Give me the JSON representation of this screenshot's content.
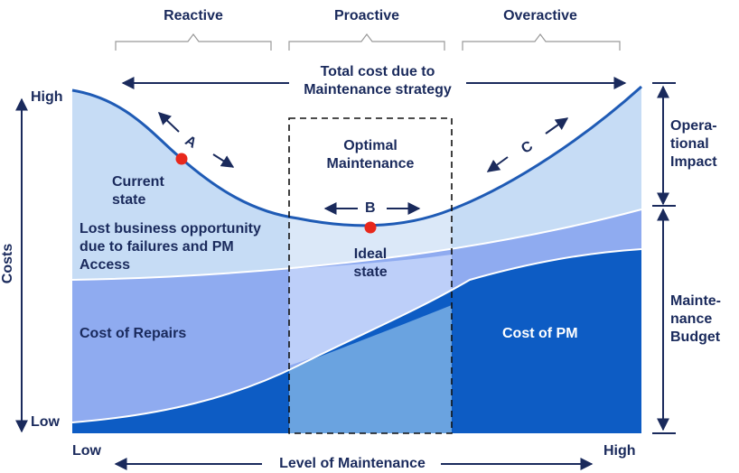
{
  "phases": {
    "reactive": "Reactive",
    "proactive": "Proactive",
    "overactive": "Overactive"
  },
  "total_cost": "Total cost due to\nMaintenance strategy",
  "y_axis": {
    "label": "Costs",
    "high": "High",
    "low": "Low"
  },
  "x_axis": {
    "label": "Level of Maintenance",
    "low": "Low",
    "high": "High"
  },
  "optimal": "Optimal\nMaintenance",
  "points": {
    "a": "A",
    "b": "B",
    "c": "C",
    "current_state": "Current\nstate",
    "ideal_state": "Ideal\nstate"
  },
  "regions": {
    "lost_business": "Lost business opportunity\ndue to failures and PM\nAccess",
    "cost_of_repairs": "Cost of Repairs",
    "cost_of_pm": "Cost of PM"
  },
  "right_brackets": {
    "operational_impact": "Opera-\ntional\nImpact",
    "maintenance_budget": "Mainte-\nnance\nBudget"
  },
  "colors": {
    "navy_text": "#1a2a5c",
    "curve": "#1f5bb5",
    "marker": "#e8281c",
    "pm_dark": "#0d5cc4",
    "repairs": "#8fabf0",
    "lost_business": "#c6dcf5"
  }
}
